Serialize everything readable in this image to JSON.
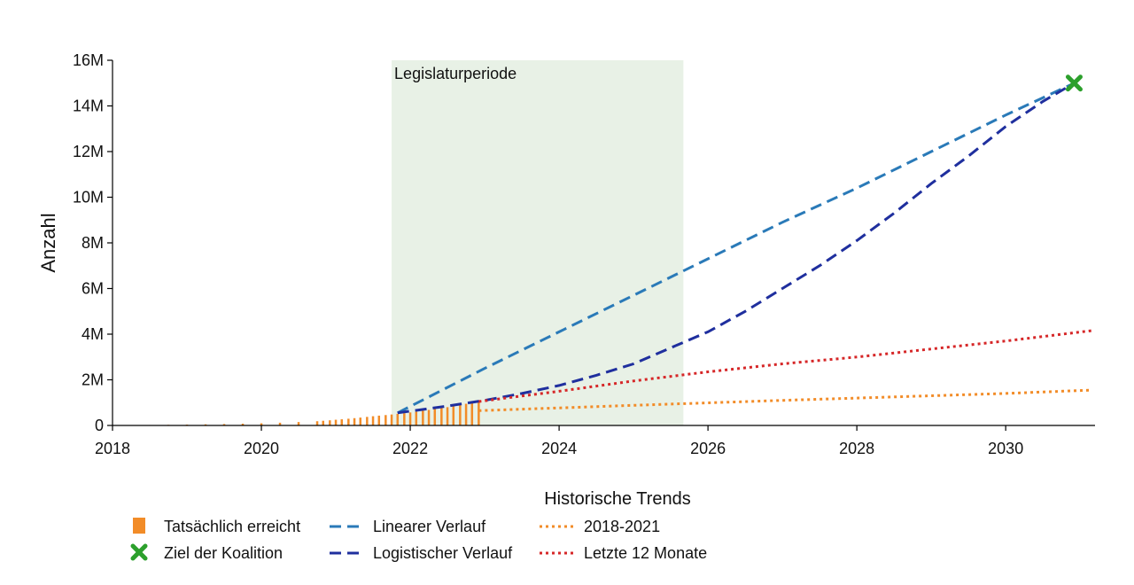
{
  "chart_data": {
    "type": "line",
    "title": "",
    "xlabel": "",
    "ylabel": "Anzahl",
    "xlim": [
      2018,
      2031.2
    ],
    "ylim": [
      0,
      16000000
    ],
    "x_ticks": [
      2018,
      2020,
      2022,
      2024,
      2026,
      2028,
      2030
    ],
    "x_tick_labels": [
      "2018",
      "2020",
      "2022",
      "2024",
      "2026",
      "2028",
      "2030"
    ],
    "y_ticks": [
      0,
      2000000,
      4000000,
      6000000,
      8000000,
      10000000,
      12000000,
      14000000,
      16000000
    ],
    "y_tick_labels": [
      "0",
      "2M",
      "4M",
      "6M",
      "8M",
      "10M",
      "12M",
      "14M",
      "16M"
    ],
    "grid": false,
    "shaded_period": {
      "label": "Legislaturperiode",
      "start": 2021.75,
      "end": 2025.67,
      "color": "#e8f1e6"
    },
    "bars": {
      "name": "Tatsächlich erreicht",
      "color": "#f28c28",
      "x": [
        2018.0,
        2018.25,
        2018.5,
        2018.75,
        2019.0,
        2019.25,
        2019.5,
        2019.75,
        2020.0,
        2020.25,
        2020.5,
        2020.75,
        2020.83,
        2020.92,
        2021.0,
        2021.08,
        2021.17,
        2021.25,
        2021.33,
        2021.42,
        2021.5,
        2021.58,
        2021.67,
        2021.75,
        2021.83,
        2021.92,
        2022.0,
        2022.08,
        2022.17,
        2022.25,
        2022.33,
        2022.42,
        2022.5,
        2022.58,
        2022.67,
        2022.75,
        2022.83,
        2022.92
      ],
      "values": [
        10000,
        15000,
        20000,
        28000,
        38000,
        50000,
        62000,
        78000,
        95000,
        120000,
        150000,
        185000,
        205000,
        225000,
        250000,
        270000,
        295000,
        320000,
        345000,
        375000,
        405000,
        430000,
        455000,
        480000,
        510000,
        540000,
        570000,
        600000,
        640000,
        680000,
        720000,
        760000,
        800000,
        850000,
        900000,
        950000,
        990000,
        1030000
      ]
    },
    "series": [
      {
        "name": "Linearer Verlauf",
        "style": "dashed",
        "color": "#2a7ab8",
        "x": [
          2021.83,
          2023,
          2024,
          2025,
          2026,
          2027,
          2028,
          2029,
          2030,
          2030.92
        ],
        "values": [
          550000,
          2500000,
          4100000,
          5700000,
          7300000,
          8900000,
          10400000,
          12000000,
          13600000,
          15000000
        ]
      },
      {
        "name": "Logistischer Verlauf",
        "style": "dashed",
        "color": "#1f2f9e",
        "x": [
          2021.83,
          2022.5,
          2023,
          2023.5,
          2024,
          2024.5,
          2025,
          2025.5,
          2026,
          2026.5,
          2027,
          2027.5,
          2028,
          2028.5,
          2029,
          2029.5,
          2030,
          2030.5,
          2030.92
        ],
        "values": [
          550000,
          850000,
          1100000,
          1400000,
          1750000,
          2200000,
          2700000,
          3400000,
          4100000,
          5000000,
          6000000,
          7000000,
          8100000,
          9300000,
          10600000,
          11800000,
          13100000,
          14200000,
          15000000
        ]
      },
      {
        "name": "2018-2021",
        "style": "dotted",
        "color": "#f28c28",
        "x": [
          2022.92,
          2024,
          2025,
          2026,
          2027,
          2028,
          2029,
          2030,
          2031.15
        ],
        "values": [
          650000,
          770000,
          880000,
          990000,
          1100000,
          1200000,
          1300000,
          1400000,
          1550000
        ]
      },
      {
        "name": "Letzte 12 Monate",
        "style": "dotted",
        "color": "#d62728",
        "x": [
          2022.92,
          2024,
          2025,
          2026,
          2027,
          2028,
          2029,
          2030,
          2031.15
        ],
        "values": [
          1050000,
          1500000,
          1950000,
          2350000,
          2700000,
          3000000,
          3350000,
          3700000,
          4150000
        ]
      }
    ],
    "target": {
      "name": "Ziel der Koalition",
      "x": 2030.92,
      "value": 15000000,
      "color": "#2ca02c",
      "marker": "x"
    },
    "legend": {
      "placement": "bottom",
      "group_title": "Historische Trends",
      "entries": [
        "Tatsächlich erreicht",
        "Ziel der Koalition",
        "Linearer Verlauf",
        "Logistischer Verlauf",
        "2018-2021",
        "Letzte 12 Monate"
      ]
    }
  }
}
